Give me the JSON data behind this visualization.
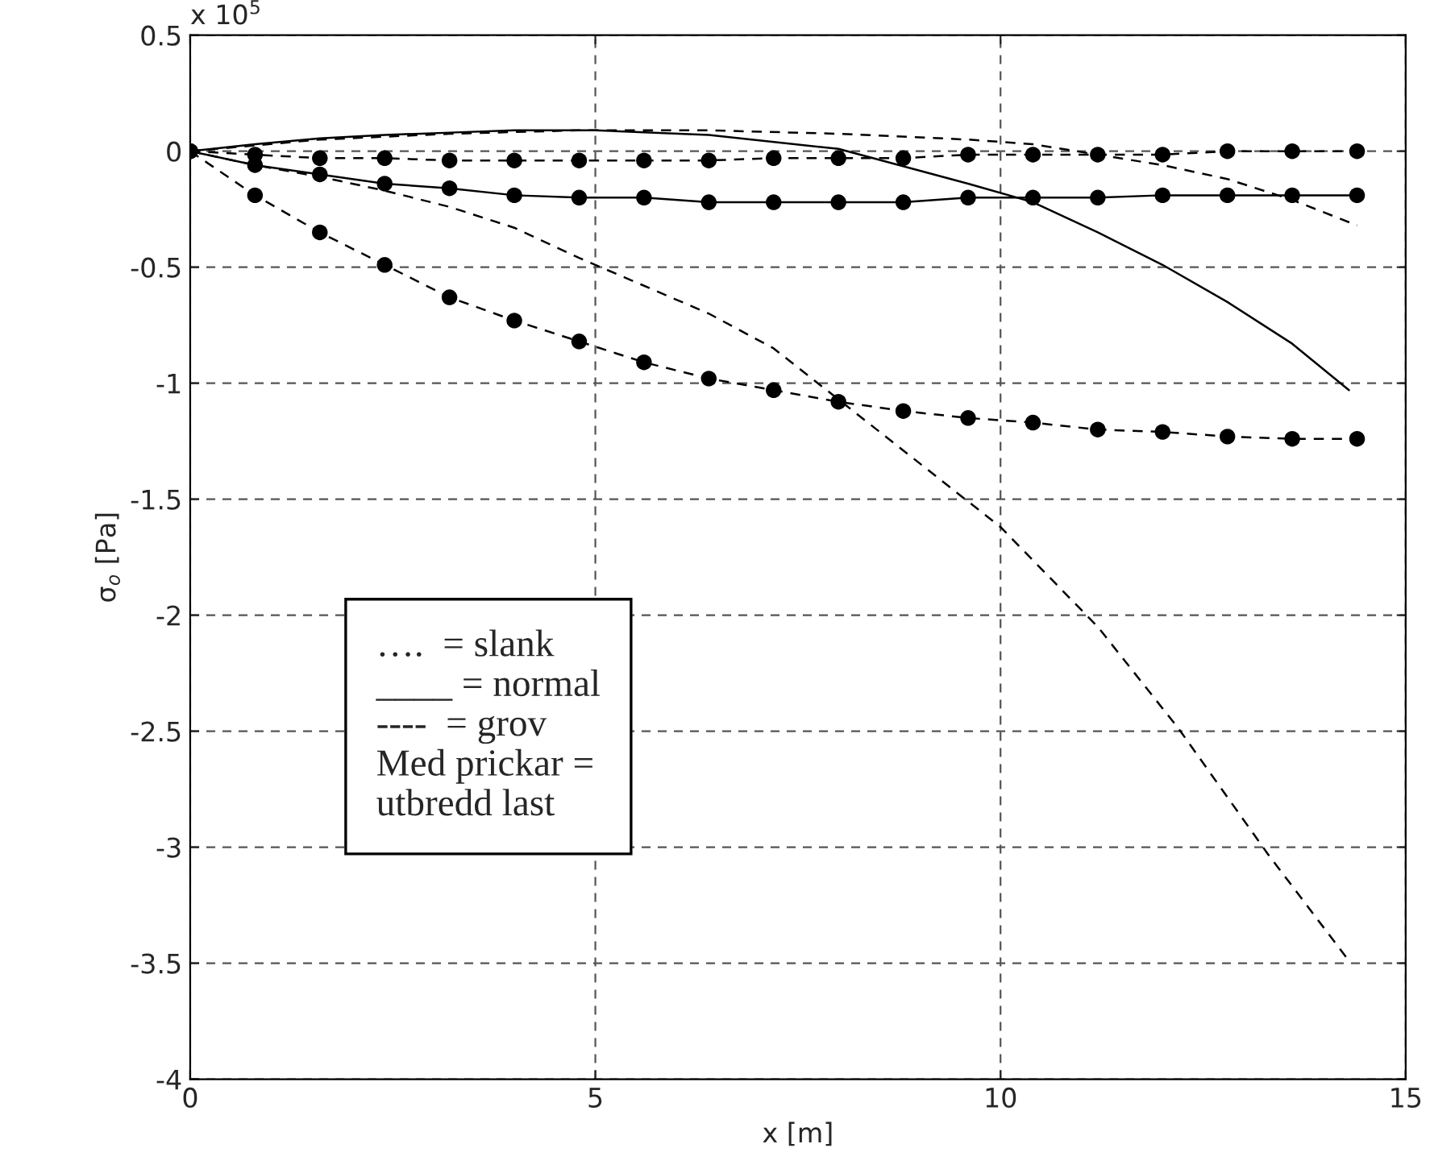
{
  "chart_data": {
    "type": "line",
    "xlabel": "x [m]",
    "ylabel": "σ$_{o}$ [Pa]",
    "xlim": [
      0,
      15
    ],
    "ylim": [
      -4,
      0.5
    ],
    "xticks": [
      0,
      5,
      10,
      15
    ],
    "yticks": [
      0.5,
      0,
      {
        "value": -0.5,
        "label": "-0.5"
      },
      {
        "value": -1,
        "label": "-1"
      },
      {
        "value": -1.5,
        "label": "-1.5"
      },
      {
        "value": -2,
        "label": "-2"
      },
      {
        "value": -2.5,
        "label": "-2.5"
      },
      {
        "value": -3,
        "label": "-3"
      },
      {
        "value": -3.5,
        "label": "-3.5"
      },
      {
        "value": -4,
        "label": "-4"
      }
    ],
    "grid": true,
    "series": [
      {
        "color": "#000000",
        "line_style": "dashed",
        "marker": "none",
        "x": [
          0,
          0.8,
          1.6,
          2.4,
          3.2,
          4,
          4.8,
          6.4,
          7.2,
          8,
          9.6,
          10,
          11.2,
          12.2,
          13.3,
          14.3
        ],
        "values": [
          0,
          -0.06,
          -0.11,
          -0.17,
          -0.24,
          -0.33,
          -0.46,
          -0.7,
          -0.85,
          -1.07,
          -1.51,
          -1.62,
          -2.05,
          -2.49,
          -3.03,
          -3.49
        ]
      },
      {
        "color": "#000000",
        "line_style": "solid",
        "marker": "none",
        "x": [
          0,
          0.8,
          1.6,
          2.4,
          3.2,
          4,
          5,
          6.4,
          8,
          9.6,
          10.4,
          11.2,
          12,
          12.8,
          13.6,
          14.3
        ],
        "values": [
          0,
          0.03,
          0.055,
          0.07,
          0.08,
          0.09,
          0.09,
          0.07,
          0.01,
          -0.14,
          -0.22,
          -0.35,
          -0.49,
          -0.65,
          -0.83,
          -1.03
        ]
      },
      {
        "color": "#000000",
        "line_style": "dashed",
        "marker": "none",
        "x": [
          0,
          1.6,
          3.2,
          4.8,
          5.6,
          6.4,
          8,
          9.6,
          10.4,
          11.2,
          12,
          12.8,
          13.6,
          14.4
        ],
        "values": [
          0,
          0.05,
          0.075,
          0.09,
          0.09,
          0.09,
          0.075,
          0.05,
          0.03,
          -0.015,
          -0.06,
          -0.12,
          -0.21,
          -0.32
        ]
      },
      {
        "color": "#000000",
        "line_style": "dashed",
        "marker": "circle",
        "x": [
          0,
          0.8,
          1.6,
          2.4,
          3.2,
          4,
          4.8,
          5.6,
          6.4,
          7.2,
          8,
          8.8,
          9.6,
          10.4,
          11.2,
          12,
          12.8,
          13.6,
          14.4
        ],
        "values": [
          0,
          -0.19,
          -0.35,
          -0.49,
          -0.63,
          -0.73,
          -0.82,
          -0.91,
          -0.98,
          -1.03,
          -1.08,
          -1.12,
          -1.15,
          -1.17,
          -1.2,
          -1.21,
          -1.23,
          -1.24,
          -1.24
        ]
      },
      {
        "color": "#000000",
        "line_style": "solid",
        "marker": "circle",
        "x": [
          0,
          0.8,
          1.6,
          2.4,
          3.2,
          4,
          4.8,
          5.6,
          6.4,
          7.2,
          8,
          8.8,
          9.6,
          10.4,
          11.2,
          12,
          12.8,
          13.6,
          14.4
        ],
        "values": [
          0,
          -0.06,
          -0.1,
          -0.14,
          -0.16,
          -0.19,
          -0.2,
          -0.2,
          -0.22,
          -0.22,
          -0.22,
          -0.22,
          -0.2,
          -0.2,
          -0.2,
          -0.19,
          -0.19,
          -0.19,
          -0.19
        ]
      },
      {
        "color": "#000000",
        "line_style": "dashed",
        "marker": "circle",
        "x": [
          0,
          0.8,
          1.6,
          2.4,
          3.2,
          4,
          4.8,
          5.6,
          6.4,
          7.2,
          8,
          8.8,
          9.6,
          10.4,
          11.2,
          12,
          12.8,
          13.6,
          14.4
        ],
        "values": [
          0,
          -0.015,
          -0.03,
          -0.03,
          -0.04,
          -0.04,
          -0.04,
          -0.04,
          -0.04,
          -0.03,
          -0.03,
          -0.03,
          -0.015,
          -0.015,
          -0.015,
          -0.015,
          0,
          0,
          0
        ]
      }
    ],
    "annotations": [
      "x 10$^{5}$",
      "….  = slank\n____ = normal\n----  = grov\nMed prickar =\nutbredd last"
    ]
  }
}
